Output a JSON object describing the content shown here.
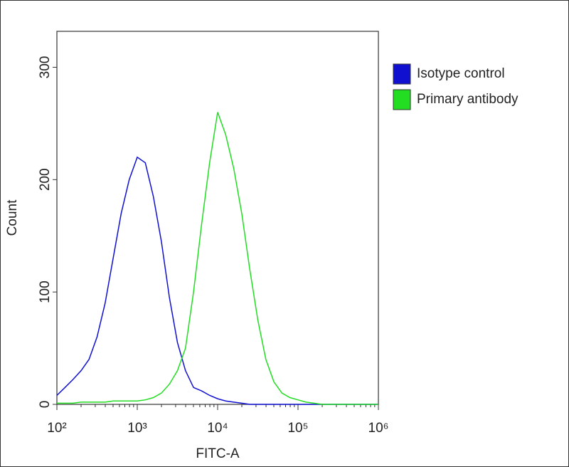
{
  "chart_data": {
    "type": "line",
    "xlabel": "FITC-A",
    "ylabel": "Count",
    "xscale": "log",
    "x": [
      100,
      126,
      158,
      200,
      251,
      316,
      398,
      501,
      631,
      794,
      1000,
      1259,
      1585,
      1995,
      2512,
      3162,
      3981,
      5012,
      6310,
      7943,
      10000,
      12589,
      15849,
      19953,
      25119,
      31623,
      39811,
      50119,
      63096,
      79433,
      100000,
      125893,
      158489,
      199526,
      251189,
      316228,
      398107,
      501187,
      630957,
      794328,
      1000000
    ],
    "series": [
      {
        "name": "Isotype control",
        "color": "#1010d0",
        "values": [
          8,
          15,
          22,
          30,
          40,
          60,
          90,
          130,
          170,
          200,
          220,
          215,
          185,
          145,
          95,
          55,
          30,
          15,
          12,
          8,
          5,
          3,
          2,
          1,
          0,
          0,
          0,
          0,
          0,
          0,
          0,
          0,
          0,
          0,
          0,
          0,
          0,
          0,
          0,
          0,
          0
        ]
      },
      {
        "name": "Primary antibody",
        "color": "#22dd22",
        "values": [
          1,
          1,
          1,
          2,
          2,
          2,
          2,
          3,
          3,
          3,
          3,
          4,
          6,
          10,
          18,
          30,
          50,
          100,
          160,
          215,
          260,
          240,
          210,
          170,
          120,
          75,
          40,
          20,
          10,
          6,
          4,
          2,
          1,
          0,
          0,
          0,
          0,
          0,
          0,
          0,
          0
        ]
      }
    ],
    "xlim": [
      100,
      1000000
    ],
    "xticks": [
      {
        "value": 100,
        "label": "10²"
      },
      {
        "value": 1000,
        "label": "10³"
      },
      {
        "value": 10000,
        "label": "10⁴"
      },
      {
        "value": 100000,
        "label": "10⁵"
      },
      {
        "value": 1000000,
        "label": "10⁶"
      }
    ],
    "xminorticks": [
      200,
      300,
      400,
      500,
      600,
      700,
      800,
      900,
      2000,
      3000,
      4000,
      5000,
      6000,
      7000,
      8000,
      9000,
      20000,
      30000,
      40000,
      50000,
      60000,
      70000,
      80000,
      90000,
      200000,
      300000,
      400000,
      500000,
      600000,
      700000,
      800000,
      900000
    ],
    "ylim": [
      0,
      332
    ],
    "yticks": [
      0,
      100,
      200,
      300
    ],
    "legend": "outside-right"
  }
}
